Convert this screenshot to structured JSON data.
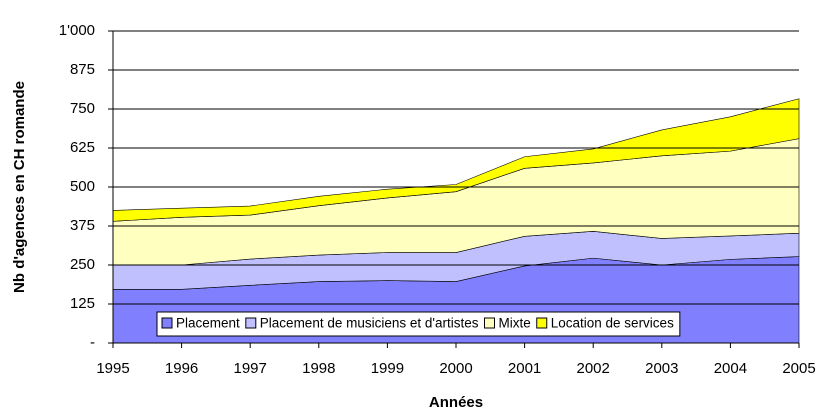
{
  "chart_data": {
    "type": "stacked-area",
    "x": [
      1995,
      1996,
      1997,
      1998,
      1999,
      2000,
      2001,
      2002,
      2003,
      2004,
      2005
    ],
    "series": [
      {
        "name": "Placement",
        "color": "#8080ff",
        "values": [
          172,
          172,
          185,
          197,
          200,
          197,
          247,
          272,
          250,
          268,
          277
        ]
      },
      {
        "name": "Placement de musiciens et d'artistes",
        "color": "#c0c0ff",
        "values": [
          78,
          78,
          84,
          85,
          90,
          93,
          95,
          86,
          85,
          75,
          75
        ]
      },
      {
        "name": "Mixte",
        "color": "#ffffc0",
        "values": [
          140,
          153,
          141,
          158,
          175,
          195,
          218,
          219,
          265,
          272,
          303
        ]
      },
      {
        "name": "Location de services",
        "color": "#ffff00",
        "values": [
          35,
          29,
          29,
          30,
          28,
          23,
          37,
          45,
          83,
          110,
          128
        ]
      }
    ],
    "xlim": [
      1995,
      2005
    ],
    "xticks": [
      1995,
      1996,
      1997,
      1998,
      1999,
      2000,
      2001,
      2002,
      2003,
      2004,
      2005
    ],
    "ylim": [
      0,
      1000
    ],
    "yticks": [
      {
        "value": 0,
        "label": "-"
      },
      125,
      250,
      375,
      500,
      625,
      750,
      875,
      {
        "value": 1000,
        "label": "1'000"
      }
    ],
    "grid": true,
    "xlabel": "Années",
    "ylabel": "Nb d'agences en CH romande",
    "legend": "bottom"
  }
}
